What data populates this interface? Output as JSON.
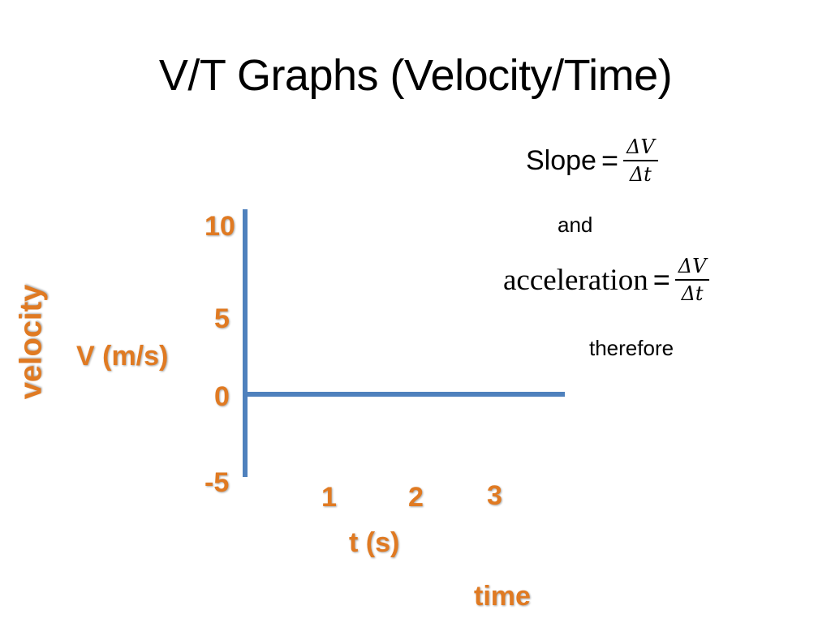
{
  "slide": {
    "title": "V/T Graphs (Velocity/Time)"
  },
  "equations": {
    "slope": {
      "word": "Slope",
      "equals": "=",
      "numerator": "ΔV",
      "denominator": "Δt"
    },
    "connector_and": "and",
    "acceleration": {
      "word": "acceleration",
      "equals": "=",
      "numerator": "ΔV",
      "denominator": "Δt"
    },
    "connector_therefore": "therefore"
  },
  "graph": {
    "y_axis_word": "velocity",
    "y_axis_label": "V (m/s)",
    "x_axis_label": "t (s)",
    "x_axis_word": "time",
    "y_ticks": [
      "10",
      "5",
      "0",
      "-5"
    ],
    "x_ticks": [
      "1",
      "2",
      "3"
    ]
  },
  "colors": {
    "axis": "#4f81bd",
    "label": "#e07a22",
    "text": "#000000"
  }
}
